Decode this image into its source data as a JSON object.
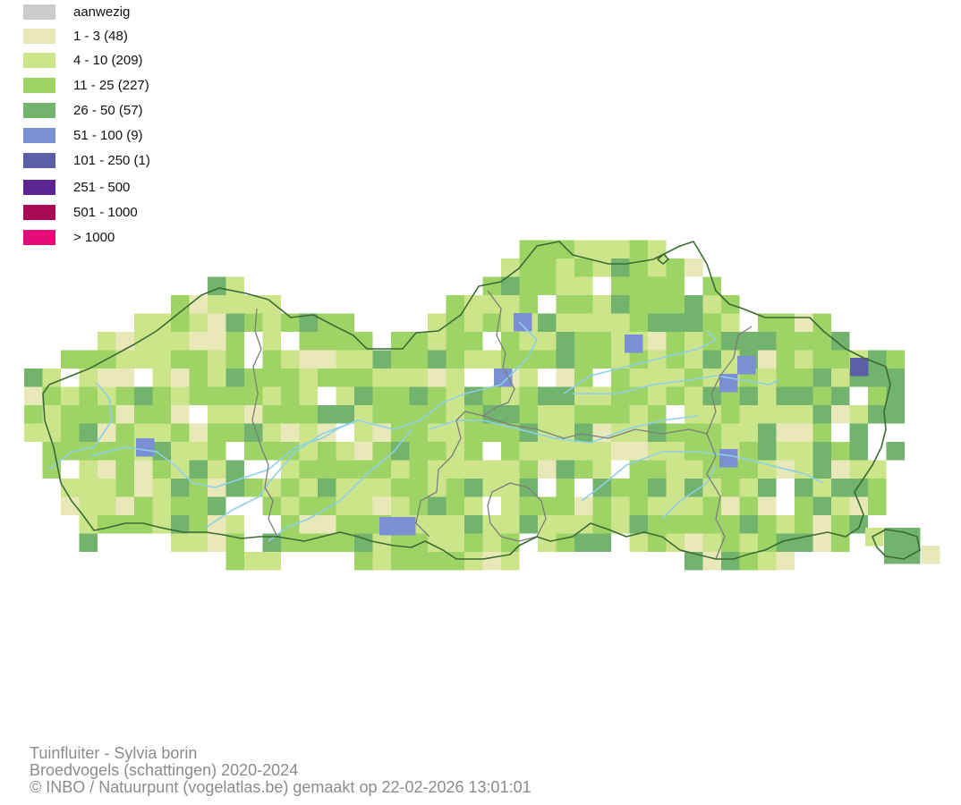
{
  "legend": {
    "items": [
      {
        "label": "aanwezig",
        "color": "#cccccc"
      },
      {
        "label": "1 - 3 (48)",
        "color": "#e8e8b8"
      },
      {
        "label": "4 - 10 (209)",
        "color": "#cde58a"
      },
      {
        "label": "11 - 25 (227)",
        "color": "#9dd465"
      },
      {
        "label": "26 - 50 (57)",
        "color": "#72b46d"
      },
      {
        "label": "51 - 100 (9)",
        "color": "#7b90d4"
      },
      {
        "label": "101 - 250 (1)",
        "color": "#5c5fa7"
      },
      {
        "label": "251 - 500",
        "color": "#5b2592"
      },
      {
        "label": "501 - 1000",
        "color": "#a80a56"
      },
      {
        "label": "> 1000",
        "color": "#e60a7a"
      }
    ]
  },
  "map": {
    "border_color": "#3c6b34",
    "province_border_color": "#7d7d7d",
    "river_color": "#8fd0e6"
  },
  "footer": {
    "line1": "Tuinfluiter - Sylvia borin",
    "line2": "Broedvogels (schattingen) 2020-2024",
    "line3": "© INBO / Natuurpunt (vogelatlas.be) gemaakt op 22-02-2026 13:01:01"
  }
}
